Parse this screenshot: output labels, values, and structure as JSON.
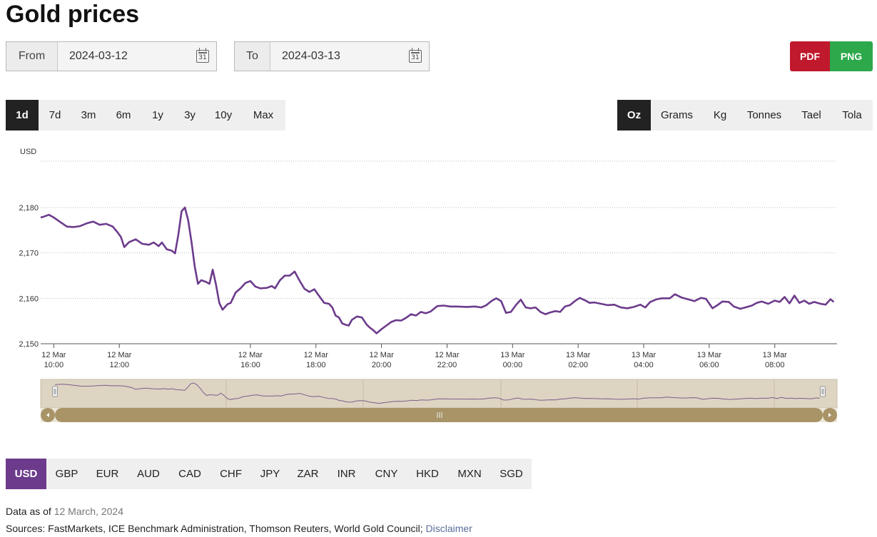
{
  "page": {
    "title": "Gold prices"
  },
  "dates": {
    "from_label": "From",
    "from_value": "2024-03-12",
    "from_cal": "31",
    "to_label": "To",
    "to_value": "2024-03-13",
    "to_cal": "31"
  },
  "export": {
    "pdf": "PDF",
    "png": "PNG",
    "pdf_color": "#c0182d",
    "png_color": "#2da84a"
  },
  "ranges": {
    "items": [
      "1d",
      "7d",
      "3m",
      "6m",
      "1y",
      "3y",
      "10y",
      "Max"
    ],
    "active": "1d"
  },
  "units": {
    "items": [
      "Oz",
      "Grams",
      "Kg",
      "Tonnes",
      "Tael",
      "Tola"
    ],
    "active": "Oz"
  },
  "currencies": {
    "items": [
      "USD",
      "GBP",
      "EUR",
      "AUD",
      "CAD",
      "CHF",
      "JPY",
      "ZAR",
      "INR",
      "CNY",
      "HKD",
      "MXN",
      "SGD"
    ],
    "active": "USD",
    "active_color": "#6c3b8c"
  },
  "footer": {
    "data_as_of_label": "Data as of",
    "data_as_of_value": "12 March, 2024",
    "sources_label": "Sources: FastMarkets, ICE Benchmark Administration, Thomson Reuters, World Gold Council;",
    "disclaimer": "Disclaimer"
  },
  "chart_data": {
    "type": "line",
    "ylabel": "USD",
    "ylim": [
      2150,
      2180
    ],
    "yticks": [
      2150,
      2160,
      2170,
      2180
    ],
    "ytick_labels": [
      "2,150",
      "2,160",
      "2,170",
      "2,180"
    ],
    "xlim": [
      9.6,
      33.9
    ],
    "xticks": [
      {
        "t": 10,
        "l1": "12 Mar",
        "l2": "10:00"
      },
      {
        "t": 12,
        "l1": "12 Mar",
        "l2": "12:00"
      },
      {
        "t": 16,
        "l1": "12 Mar",
        "l2": "16:00"
      },
      {
        "t": 18,
        "l1": "12 Mar",
        "l2": "18:00"
      },
      {
        "t": 20,
        "l1": "12 Mar",
        "l2": "20:00"
      },
      {
        "t": 22,
        "l1": "12 Mar",
        "l2": "22:00"
      },
      {
        "t": 24,
        "l1": "13 Mar",
        "l2": "00:00"
      },
      {
        "t": 26,
        "l1": "13 Mar",
        "l2": "02:00"
      },
      {
        "t": 28,
        "l1": "13 Mar",
        "l2": "04:00"
      },
      {
        "t": 30,
        "l1": "13 Mar",
        "l2": "06:00"
      },
      {
        "t": 32,
        "l1": "13 Mar",
        "l2": "08:00"
      }
    ],
    "grid": true,
    "line_color": "#6c3b8c",
    "navigator_color": "#a89467",
    "series": [
      {
        "values": [
          [
            9.6,
            2177.8
          ],
          [
            9.7,
            2178.0
          ],
          [
            9.85,
            2178.4
          ],
          [
            10.0,
            2177.8
          ],
          [
            10.2,
            2176.8
          ],
          [
            10.4,
            2175.8
          ],
          [
            10.6,
            2175.7
          ],
          [
            10.8,
            2175.9
          ],
          [
            11.0,
            2176.5
          ],
          [
            11.2,
            2176.9
          ],
          [
            11.4,
            2176.2
          ],
          [
            11.6,
            2176.4
          ],
          [
            11.8,
            2175.8
          ],
          [
            11.95,
            2174.5
          ],
          [
            12.05,
            2173.5
          ],
          [
            12.15,
            2171.3
          ],
          [
            12.3,
            2172.4
          ],
          [
            12.5,
            2173.0
          ],
          [
            12.7,
            2172.0
          ],
          [
            12.9,
            2171.8
          ],
          [
            13.05,
            2172.3
          ],
          [
            13.2,
            2171.5
          ],
          [
            13.3,
            2172.3
          ],
          [
            13.45,
            2170.8
          ],
          [
            13.6,
            2170.5
          ],
          [
            13.7,
            2169.9
          ],
          [
            13.8,
            2174.0
          ],
          [
            13.9,
            2179.2
          ],
          [
            14.0,
            2180.0
          ],
          [
            14.1,
            2177.2
          ],
          [
            14.2,
            2172.5
          ],
          [
            14.3,
            2167.0
          ],
          [
            14.4,
            2163.2
          ],
          [
            14.5,
            2164.0
          ],
          [
            14.65,
            2163.6
          ],
          [
            14.75,
            2163.2
          ],
          [
            14.85,
            2166.3
          ],
          [
            14.95,
            2163.0
          ],
          [
            15.05,
            2159.0
          ],
          [
            15.15,
            2157.5
          ],
          [
            15.3,
            2158.7
          ],
          [
            15.4,
            2159.0
          ],
          [
            15.55,
            2161.3
          ],
          [
            15.7,
            2162.2
          ],
          [
            15.85,
            2163.4
          ],
          [
            16.0,
            2163.8
          ],
          [
            16.15,
            2162.6
          ],
          [
            16.3,
            2162.2
          ],
          [
            16.5,
            2162.3
          ],
          [
            16.65,
            2162.7
          ],
          [
            16.75,
            2162.2
          ],
          [
            16.9,
            2164.0
          ],
          [
            17.05,
            2165.0
          ],
          [
            17.2,
            2165.0
          ],
          [
            17.35,
            2165.9
          ],
          [
            17.5,
            2163.9
          ],
          [
            17.65,
            2162.1
          ],
          [
            17.8,
            2161.4
          ],
          [
            17.95,
            2162.0
          ],
          [
            18.1,
            2160.5
          ],
          [
            18.25,
            2159.0
          ],
          [
            18.4,
            2158.8
          ],
          [
            18.5,
            2158.0
          ],
          [
            18.6,
            2156.2
          ],
          [
            18.7,
            2155.8
          ],
          [
            18.8,
            2154.5
          ],
          [
            18.9,
            2154.2
          ],
          [
            19.0,
            2154.0
          ],
          [
            19.1,
            2155.3
          ],
          [
            19.25,
            2156.0
          ],
          [
            19.4,
            2155.8
          ],
          [
            19.55,
            2154.2
          ],
          [
            19.65,
            2153.5
          ],
          [
            19.75,
            2153.0
          ],
          [
            19.85,
            2152.3
          ],
          [
            20.0,
            2153.2
          ],
          [
            20.15,
            2154.0
          ],
          [
            20.3,
            2154.8
          ],
          [
            20.45,
            2155.2
          ],
          [
            20.6,
            2155.1
          ],
          [
            20.75,
            2155.7
          ],
          [
            20.9,
            2156.5
          ],
          [
            21.05,
            2156.2
          ],
          [
            21.2,
            2157.0
          ],
          [
            21.35,
            2156.7
          ],
          [
            21.5,
            2157.1
          ],
          [
            21.7,
            2158.3
          ],
          [
            21.9,
            2158.4
          ],
          [
            22.1,
            2158.2
          ],
          [
            22.3,
            2158.2
          ],
          [
            22.6,
            2158.1
          ],
          [
            22.85,
            2158.2
          ],
          [
            23.05,
            2158.0
          ],
          [
            23.2,
            2158.5
          ],
          [
            23.35,
            2159.4
          ],
          [
            23.5,
            2160.0
          ],
          [
            23.65,
            2159.4
          ],
          [
            23.8,
            2156.8
          ],
          [
            23.95,
            2157.0
          ],
          [
            24.1,
            2158.5
          ],
          [
            24.25,
            2159.7
          ],
          [
            24.4,
            2158.0
          ],
          [
            24.55,
            2157.8
          ],
          [
            24.7,
            2158.0
          ],
          [
            24.85,
            2157.0
          ],
          [
            25.0,
            2156.5
          ],
          [
            25.15,
            2156.9
          ],
          [
            25.3,
            2157.2
          ],
          [
            25.45,
            2157.0
          ],
          [
            25.6,
            2158.2
          ],
          [
            25.75,
            2158.5
          ],
          [
            25.9,
            2159.4
          ],
          [
            26.05,
            2160.1
          ],
          [
            26.2,
            2159.6
          ],
          [
            26.35,
            2159.0
          ],
          [
            26.5,
            2159.1
          ],
          [
            26.7,
            2158.8
          ],
          [
            26.9,
            2158.5
          ],
          [
            27.1,
            2158.6
          ],
          [
            27.3,
            2158.0
          ],
          [
            27.5,
            2157.8
          ],
          [
            27.7,
            2158.1
          ],
          [
            27.9,
            2158.6
          ],
          [
            28.05,
            2158.0
          ],
          [
            28.2,
            2159.2
          ],
          [
            28.4,
            2159.8
          ],
          [
            28.55,
            2160.0
          ],
          [
            28.8,
            2160.0
          ],
          [
            28.95,
            2160.9
          ],
          [
            29.15,
            2160.2
          ],
          [
            29.35,
            2159.8
          ],
          [
            29.55,
            2159.4
          ],
          [
            29.75,
            2160.1
          ],
          [
            29.9,
            2159.9
          ],
          [
            30.1,
            2157.8
          ],
          [
            30.25,
            2158.5
          ],
          [
            30.4,
            2159.3
          ],
          [
            30.6,
            2159.2
          ],
          [
            30.75,
            2158.2
          ],
          [
            30.95,
            2157.7
          ],
          [
            31.1,
            2158.0
          ],
          [
            31.3,
            2158.4
          ],
          [
            31.45,
            2159.0
          ],
          [
            31.6,
            2159.3
          ],
          [
            31.8,
            2158.8
          ],
          [
            32.0,
            2159.5
          ],
          [
            32.15,
            2159.2
          ],
          [
            32.3,
            2160.3
          ],
          [
            32.45,
            2158.9
          ],
          [
            32.6,
            2160.6
          ],
          [
            32.75,
            2159.0
          ],
          [
            32.9,
            2159.5
          ],
          [
            33.05,
            2158.8
          ],
          [
            33.2,
            2159.2
          ],
          [
            33.4,
            2158.8
          ],
          [
            33.55,
            2158.6
          ],
          [
            33.7,
            2159.8
          ],
          [
            33.8,
            2159.2
          ]
        ]
      }
    ]
  }
}
